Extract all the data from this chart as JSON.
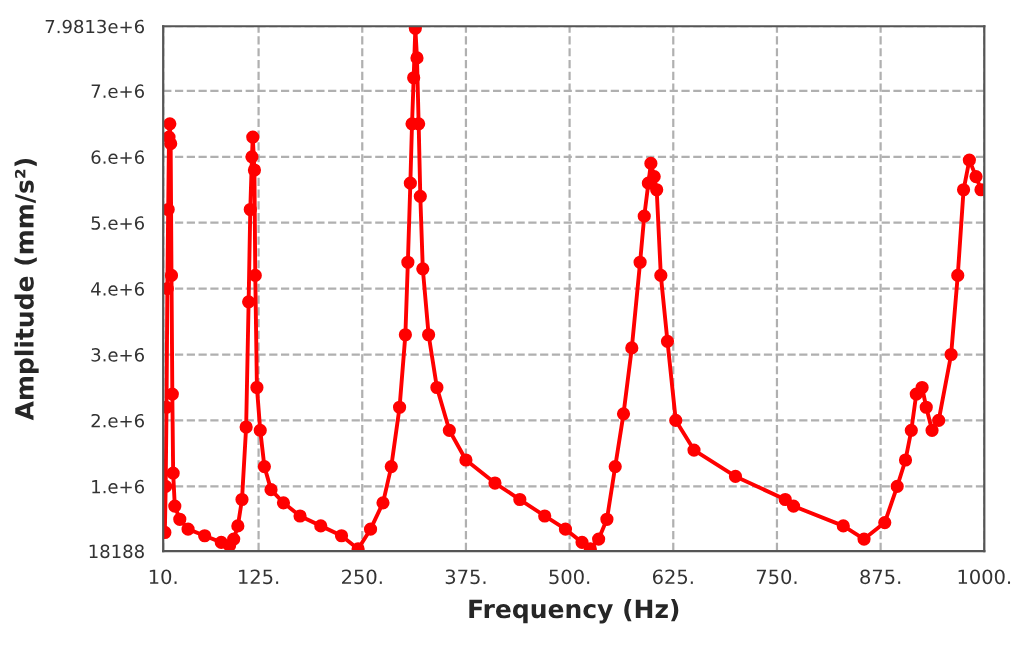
{
  "chart_data": {
    "type": "line",
    "xlabel": "Frequency (Hz)",
    "ylabel": "Amplitude (mm/s²)",
    "xlim": [
      10,
      1000
    ],
    "ylim": [
      18188,
      7981300
    ],
    "xticks": [
      {
        "value": 10,
        "label": "10."
      },
      {
        "value": 125,
        "label": "125."
      },
      {
        "value": 250,
        "label": "250."
      },
      {
        "value": 375,
        "label": "375."
      },
      {
        "value": 500,
        "label": "500."
      },
      {
        "value": 625,
        "label": "625."
      },
      {
        "value": 750,
        "label": "750."
      },
      {
        "value": 875,
        "label": "875."
      },
      {
        "value": 1000,
        "label": "1000."
      }
    ],
    "yticks": [
      18188,
      {
        "value": 1000000,
        "label": "1.e+6"
      },
      {
        "value": 2000000,
        "label": "2.e+6"
      },
      {
        "value": 3000000,
        "label": "3.e+6"
      },
      {
        "value": 4000000,
        "label": "4.e+6"
      },
      {
        "value": 5000000,
        "label": "5.e+6"
      },
      {
        "value": 6000000,
        "label": "6.e+6"
      },
      {
        "value": 7000000,
        "label": "7.e+6"
      },
      {
        "value": 7981300,
        "label": "7.9813e+6"
      }
    ],
    "grid": true,
    "marker": "circle",
    "line_style": "solid",
    "legend": false,
    "series": [
      {
        "color": "#ff0000",
        "x": [
          12,
          13,
          14,
          15,
          16,
          17,
          18,
          19,
          20,
          21,
          22,
          24,
          30,
          40,
          60,
          80,
          90,
          95,
          100,
          105,
          110,
          113,
          115,
          117,
          118,
          120,
          121,
          123,
          127,
          132,
          140,
          155,
          175,
          200,
          225,
          245,
          260,
          275,
          285,
          295,
          302,
          305,
          308,
          310,
          312,
          314,
          316,
          318,
          320,
          323,
          330,
          340,
          355,
          375,
          410,
          440,
          470,
          495,
          515,
          525,
          535,
          545,
          555,
          565,
          575,
          585,
          590,
          595,
          598,
          602,
          605,
          610,
          618,
          628,
          650,
          700,
          760,
          770,
          830,
          855,
          880,
          895,
          905,
          912,
          918,
          925,
          930,
          937,
          945,
          960,
          968,
          975,
          982,
          990,
          996
        ],
        "values": [
          300000,
          1000000,
          2200000,
          4000000,
          5200000,
          6300000,
          6500000,
          6200000,
          4200000,
          2400000,
          1200000,
          700000,
          500000,
          350000,
          250000,
          150000,
          100000,
          200000,
          400000,
          800000,
          1900000,
          3800000,
          5200000,
          6000000,
          6300000,
          5800000,
          4200000,
          2500000,
          1850000,
          1300000,
          950000,
          750000,
          550000,
          400000,
          250000,
          50000,
          350000,
          750000,
          1300000,
          2200000,
          3300000,
          4400000,
          5600000,
          6500000,
          7200000,
          7950000,
          7500000,
          6500000,
          5400000,
          4300000,
          3300000,
          2500000,
          1850000,
          1400000,
          1050000,
          800000,
          550000,
          350000,
          150000,
          50000,
          200000,
          500000,
          1300000,
          2100000,
          3100000,
          4400000,
          5100000,
          5600000,
          5900000,
          5700000,
          5500000,
          4200000,
          3200000,
          2000000,
          1550000,
          1150000,
          800000,
          700000,
          400000,
          200000,
          450000,
          1000000,
          1400000,
          1850000,
          2400000,
          2500000,
          2200000,
          1850000,
          2000000,
          3000000,
          4200000,
          5500000,
          5950000,
          5700000,
          5500000
        ]
      }
    ]
  }
}
